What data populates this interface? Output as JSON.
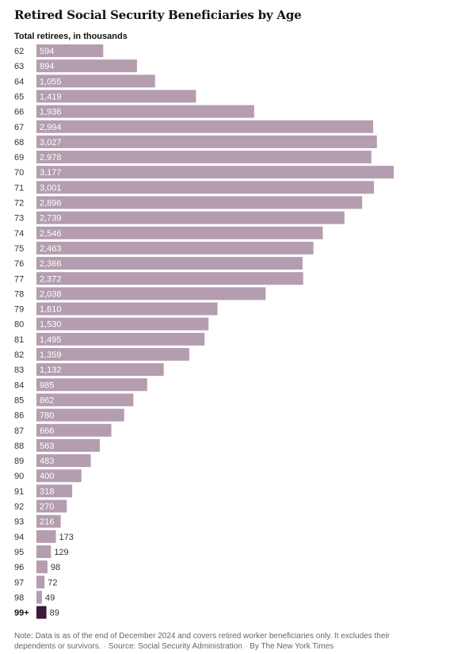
{
  "title": "Retired Social Security Beneficiaries by Age",
  "subtitle": "Total retirees, in thousands",
  "note": "Note: Data is as of the end of December 2024 and covers retired worker beneficiaries only. It excludes their dependents or survivors.",
  "source": "Source: Social Security Administration",
  "credit": "By The New York Times",
  "colors": {
    "bar": "#b49daf",
    "highlight_bar": "#3b1a3a",
    "label_inside": "#ffffff",
    "label_outside": "#333333"
  },
  "chart_data": {
    "type": "bar",
    "orientation": "horizontal",
    "categories": [
      "62",
      "63",
      "64",
      "65",
      "66",
      "67",
      "68",
      "69",
      "70",
      "71",
      "72",
      "73",
      "74",
      "75",
      "76",
      "77",
      "78",
      "79",
      "80",
      "81",
      "82",
      "83",
      "84",
      "85",
      "86",
      "87",
      "88",
      "89",
      "90",
      "91",
      "92",
      "93",
      "94",
      "95",
      "96",
      "97",
      "98",
      "99+"
    ],
    "values": [
      594,
      894,
      1055,
      1419,
      1936,
      2994,
      3027,
      2978,
      3177,
      3001,
      2896,
      2739,
      2546,
      2463,
      2366,
      2372,
      2038,
      1610,
      1530,
      1495,
      1359,
      1132,
      985,
      862,
      780,
      666,
      563,
      483,
      400,
      318,
      270,
      216,
      173,
      129,
      98,
      72,
      49,
      89
    ],
    "value_labels": [
      "594",
      "894",
      "1,055",
      "1,419",
      "1,936",
      "2,994",
      "3,027",
      "2,978",
      "3,177",
      "3,001",
      "2,896",
      "2,739",
      "2,546",
      "2,463",
      "2,366",
      "2,372",
      "2,038",
      "1,610",
      "1,530",
      "1,495",
      "1,359",
      "1,132",
      "985",
      "862",
      "780",
      "666",
      "563",
      "483",
      "400",
      "318",
      "270",
      "216",
      "173",
      "129",
      "98",
      "72",
      "49",
      "89"
    ],
    "highlight_category": "99+",
    "xlabel": "",
    "ylabel": "",
    "xlim": [
      0,
      3177
    ],
    "grid": false,
    "legend": "none"
  }
}
